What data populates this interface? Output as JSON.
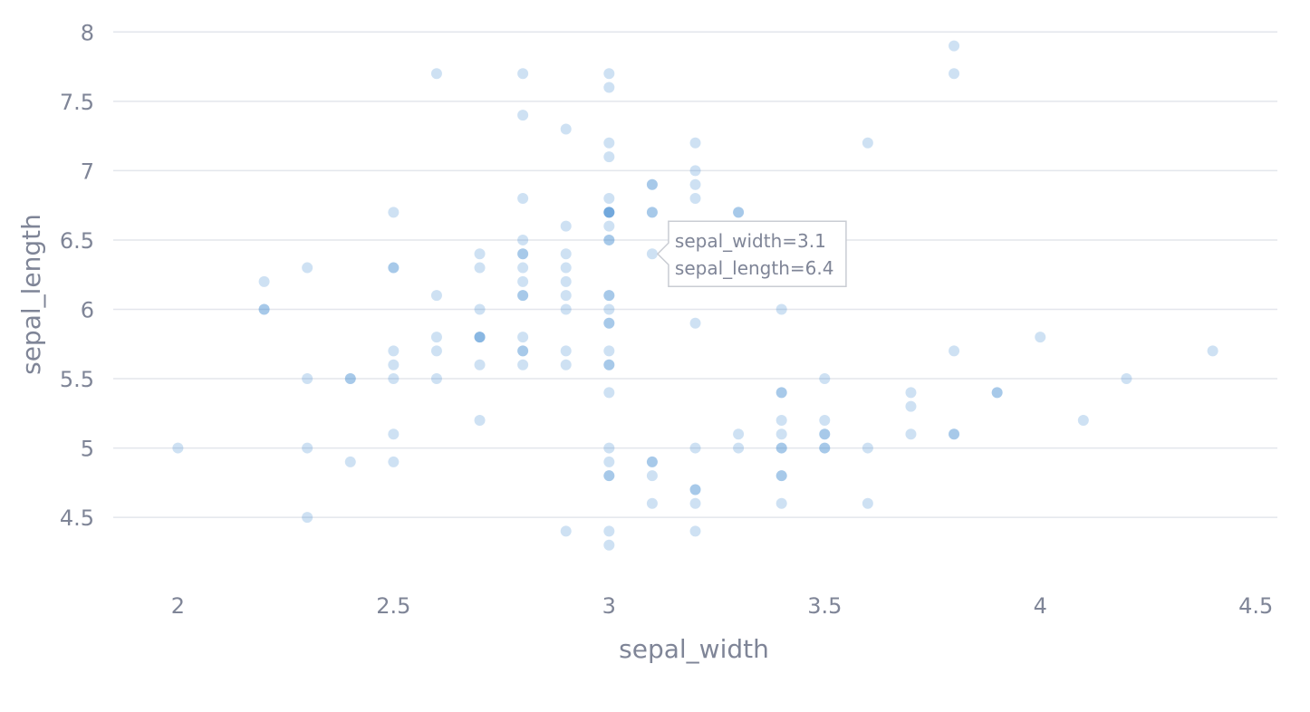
{
  "chart_data": {
    "type": "scatter",
    "xlabel": "sepal_width",
    "ylabel": "sepal_length",
    "xlim": [
      1.85,
      4.55
    ],
    "ylim": [
      4.05,
      8.1
    ],
    "x_ticks": [
      "2",
      "2.5",
      "3",
      "3.5",
      "4",
      "4.5"
    ],
    "y_ticks": [
      "4.5",
      "5",
      "5.5",
      "6",
      "6.5",
      "7",
      "7.5",
      "8"
    ],
    "grid": true,
    "marker_color": "#1f77c8",
    "marker_opacity": 0.22,
    "points": [
      [
        2.0,
        5.0
      ],
      [
        2.2,
        6.2
      ],
      [
        2.2,
        6.0
      ],
      [
        2.2,
        6.0
      ],
      [
        2.3,
        6.3
      ],
      [
        2.3,
        5.5
      ],
      [
        2.3,
        5.0
      ],
      [
        2.3,
        4.5
      ],
      [
        2.4,
        5.5
      ],
      [
        2.4,
        5.5
      ],
      [
        2.4,
        4.9
      ],
      [
        2.5,
        6.7
      ],
      [
        2.5,
        6.3
      ],
      [
        2.5,
        6.3
      ],
      [
        2.5,
        5.7
      ],
      [
        2.5,
        5.6
      ],
      [
        2.5,
        5.5
      ],
      [
        2.5,
        5.1
      ],
      [
        2.5,
        4.9
      ],
      [
        2.6,
        7.7
      ],
      [
        2.6,
        6.1
      ],
      [
        2.6,
        5.8
      ],
      [
        2.6,
        5.7
      ],
      [
        2.6,
        5.5
      ],
      [
        2.7,
        6.4
      ],
      [
        2.7,
        6.3
      ],
      [
        2.7,
        6.0
      ],
      [
        2.7,
        5.8
      ],
      [
        2.7,
        5.8
      ],
      [
        2.7,
        5.8
      ],
      [
        2.7,
        5.6
      ],
      [
        2.7,
        5.2
      ],
      [
        2.8,
        7.7
      ],
      [
        2.8,
        7.4
      ],
      [
        2.8,
        6.8
      ],
      [
        2.8,
        6.5
      ],
      [
        2.8,
        6.4
      ],
      [
        2.8,
        6.4
      ],
      [
        2.8,
        6.3
      ],
      [
        2.8,
        6.2
      ],
      [
        2.8,
        6.1
      ],
      [
        2.8,
        6.1
      ],
      [
        2.8,
        5.8
      ],
      [
        2.8,
        5.7
      ],
      [
        2.8,
        5.7
      ],
      [
        2.8,
        5.6
      ],
      [
        2.9,
        7.3
      ],
      [
        2.9,
        6.6
      ],
      [
        2.9,
        6.4
      ],
      [
        2.9,
        6.3
      ],
      [
        2.9,
        6.2
      ],
      [
        2.9,
        6.1
      ],
      [
        2.9,
        6.0
      ],
      [
        2.9,
        5.7
      ],
      [
        2.9,
        5.6
      ],
      [
        2.9,
        4.4
      ],
      [
        3.0,
        7.7
      ],
      [
        3.0,
        7.6
      ],
      [
        3.0,
        7.2
      ],
      [
        3.0,
        7.1
      ],
      [
        3.0,
        6.8
      ],
      [
        3.0,
        6.7
      ],
      [
        3.0,
        6.7
      ],
      [
        3.0,
        6.7
      ],
      [
        3.0,
        6.7
      ],
      [
        3.0,
        6.6
      ],
      [
        3.0,
        6.5
      ],
      [
        3.0,
        6.5
      ],
      [
        3.0,
        6.1
      ],
      [
        3.0,
        6.1
      ],
      [
        3.0,
        6.0
      ],
      [
        3.0,
        5.9
      ],
      [
        3.0,
        5.9
      ],
      [
        3.0,
        5.7
      ],
      [
        3.0,
        5.6
      ],
      [
        3.0,
        5.6
      ],
      [
        3.0,
        5.4
      ],
      [
        3.0,
        5.0
      ],
      [
        3.0,
        4.9
      ],
      [
        3.0,
        4.8
      ],
      [
        3.0,
        4.8
      ],
      [
        3.0,
        4.4
      ],
      [
        3.0,
        4.3
      ],
      [
        3.1,
        6.9
      ],
      [
        3.1,
        6.9
      ],
      [
        3.1,
        6.7
      ],
      [
        3.1,
        6.7
      ],
      [
        3.1,
        6.4
      ],
      [
        3.1,
        4.9
      ],
      [
        3.1,
        4.9
      ],
      [
        3.1,
        4.8
      ],
      [
        3.1,
        4.6
      ],
      [
        3.2,
        7.2
      ],
      [
        3.2,
        7.0
      ],
      [
        3.2,
        6.9
      ],
      [
        3.2,
        6.8
      ],
      [
        3.2,
        5.9
      ],
      [
        3.2,
        5.0
      ],
      [
        3.2,
        4.7
      ],
      [
        3.2,
        4.7
      ],
      [
        3.2,
        4.6
      ],
      [
        3.2,
        4.4
      ],
      [
        3.3,
        6.7
      ],
      [
        3.3,
        6.7
      ],
      [
        3.3,
        5.1
      ],
      [
        3.3,
        5.0
      ],
      [
        3.4,
        6.0
      ],
      [
        3.4,
        5.4
      ],
      [
        3.4,
        5.4
      ],
      [
        3.4,
        5.2
      ],
      [
        3.4,
        5.1
      ],
      [
        3.4,
        5.0
      ],
      [
        3.4,
        5.0
      ],
      [
        3.4,
        4.8
      ],
      [
        3.4,
        4.8
      ],
      [
        3.4,
        4.6
      ],
      [
        3.5,
        5.5
      ],
      [
        3.5,
        5.2
      ],
      [
        3.5,
        5.1
      ],
      [
        3.5,
        5.1
      ],
      [
        3.5,
        5.0
      ],
      [
        3.5,
        5.0
      ],
      [
        3.6,
        7.2
      ],
      [
        3.6,
        5.0
      ],
      [
        3.6,
        4.6
      ],
      [
        3.7,
        5.4
      ],
      [
        3.7,
        5.3
      ],
      [
        3.7,
        5.1
      ],
      [
        3.8,
        7.9
      ],
      [
        3.8,
        7.7
      ],
      [
        3.8,
        5.7
      ],
      [
        3.8,
        5.1
      ],
      [
        3.8,
        5.1
      ],
      [
        3.9,
        5.4
      ],
      [
        3.9,
        5.4
      ],
      [
        4.0,
        5.8
      ],
      [
        4.1,
        5.2
      ],
      [
        4.2,
        5.5
      ],
      [
        4.4,
        5.7
      ]
    ],
    "tooltip": {
      "x": 3.1,
      "y": 6.4,
      "line1": "sepal_width=3.1",
      "line2": "sepal_length=6.4"
    }
  }
}
